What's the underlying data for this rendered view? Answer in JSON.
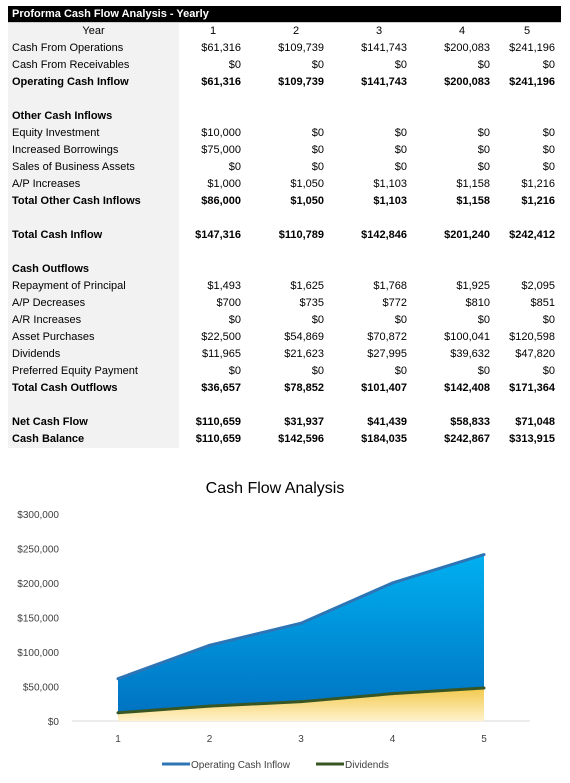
{
  "table": {
    "title": "Proforma Cash Flow Analysis - Yearly",
    "year_label": "Year",
    "years": [
      "1",
      "2",
      "3",
      "4",
      "5"
    ],
    "rows": [
      {
        "label": "Cash From Operations",
        "values": [
          "$61,316",
          "$109,739",
          "$141,743",
          "$200,083",
          "$241,196"
        ],
        "bold": false
      },
      {
        "label": "Cash From Receivables",
        "values": [
          "$0",
          "$0",
          "$0",
          "$0",
          "$0"
        ],
        "bold": false
      },
      {
        "label": "Operating Cash Inflow",
        "values": [
          "$61,316",
          "$109,739",
          "$141,743",
          "$200,083",
          "$241,196"
        ],
        "bold": true
      },
      {
        "label": "",
        "values": [
          "",
          "",
          "",
          "",
          ""
        ],
        "bold": false
      },
      {
        "label": "Other Cash Inflows",
        "values": [
          "",
          "",
          "",
          "",
          ""
        ],
        "bold": true
      },
      {
        "label": "Equity Investment",
        "values": [
          "$10,000",
          "$0",
          "$0",
          "$0",
          "$0"
        ],
        "bold": false
      },
      {
        "label": "Increased Borrowings",
        "values": [
          "$75,000",
          "$0",
          "$0",
          "$0",
          "$0"
        ],
        "bold": false
      },
      {
        "label": "Sales of Business Assets",
        "values": [
          "$0",
          "$0",
          "$0",
          "$0",
          "$0"
        ],
        "bold": false
      },
      {
        "label": "A/P Increases",
        "values": [
          "$1,000",
          "$1,050",
          "$1,103",
          "$1,158",
          "$1,216"
        ],
        "bold": false
      },
      {
        "label": "Total Other Cash Inflows",
        "values": [
          "$86,000",
          "$1,050",
          "$1,103",
          "$1,158",
          "$1,216"
        ],
        "bold": true
      },
      {
        "label": "",
        "values": [
          "",
          "",
          "",
          "",
          ""
        ],
        "bold": false
      },
      {
        "label": "Total Cash Inflow",
        "values": [
          "$147,316",
          "$110,789",
          "$142,846",
          "$201,240",
          "$242,412"
        ],
        "bold": true
      },
      {
        "label": "",
        "values": [
          "",
          "",
          "",
          "",
          ""
        ],
        "bold": false
      },
      {
        "label": "Cash Outflows",
        "values": [
          "",
          "",
          "",
          "",
          ""
        ],
        "bold": true
      },
      {
        "label": "Repayment of Principal",
        "values": [
          "$1,493",
          "$1,625",
          "$1,768",
          "$1,925",
          "$2,095"
        ],
        "bold": false
      },
      {
        "label": "A/P Decreases",
        "values": [
          "$700",
          "$735",
          "$772",
          "$810",
          "$851"
        ],
        "bold": false
      },
      {
        "label": "A/R Increases",
        "values": [
          "$0",
          "$0",
          "$0",
          "$0",
          "$0"
        ],
        "bold": false
      },
      {
        "label": "Asset Purchases",
        "values": [
          "$22,500",
          "$54,869",
          "$70,872",
          "$100,041",
          "$120,598"
        ],
        "bold": false
      },
      {
        "label": "Dividends",
        "values": [
          "$11,965",
          "$21,623",
          "$27,995",
          "$39,632",
          "$47,820"
        ],
        "bold": false
      },
      {
        "label": "Preferred Equity Payment",
        "values": [
          "$0",
          "$0",
          "$0",
          "$0",
          "$0"
        ],
        "bold": false
      },
      {
        "label": "Total Cash Outflows",
        "values": [
          "$36,657",
          "$78,852",
          "$101,407",
          "$142,408",
          "$171,364"
        ],
        "bold": true
      },
      {
        "label": "",
        "values": [
          "",
          "",
          "",
          "",
          ""
        ],
        "bold": false
      },
      {
        "label": "Net Cash Flow",
        "values": [
          "$110,659",
          "$31,937",
          "$41,439",
          "$58,833",
          "$71,048"
        ],
        "bold": true
      },
      {
        "label": "Cash Balance",
        "values": [
          "$110,659",
          "$142,596",
          "$184,035",
          "$242,867",
          "$313,915"
        ],
        "bold": true
      }
    ]
  },
  "chart_data": {
    "type": "area",
    "title": "Cash Flow Analysis",
    "x": [
      1,
      2,
      3,
      4,
      5
    ],
    "ylim": [
      0,
      300000
    ],
    "yticks": [
      0,
      50000,
      100000,
      150000,
      200000,
      250000,
      300000
    ],
    "ytick_labels": [
      "$0",
      "$50,000",
      "$100,000",
      "$150,000",
      "$200,000",
      "$250,000",
      "$300,000"
    ],
    "xtick_labels": [
      "1",
      "2",
      "3",
      "4",
      "5"
    ],
    "grid": false,
    "legend_position": "bottom",
    "series": [
      {
        "name": "Operating Cash Inflow",
        "values": [
          61316,
          109739,
          141743,
          200083,
          241196
        ],
        "color": "#0070c0",
        "line_color": "#2e75b6"
      },
      {
        "name": "Dividends",
        "values": [
          11965,
          21623,
          27995,
          39632,
          47820
        ],
        "color": "#f2c94c",
        "line_color": "#375623"
      }
    ]
  }
}
